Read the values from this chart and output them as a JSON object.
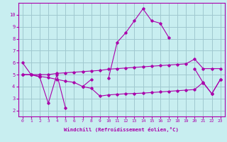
{
  "xlabel": "Windchill (Refroidissement éolien,°C)",
  "background_color": "#c8eef0",
  "grid_color": "#a0c8d0",
  "line_color": "#aa00aa",
  "x_data": [
    0,
    1,
    2,
    3,
    4,
    5,
    6,
    7,
    8,
    9,
    10,
    11,
    12,
    13,
    14,
    15,
    16,
    17,
    18,
    19,
    20,
    21,
    22,
    23
  ],
  "y_main": [
    6.0,
    5.0,
    4.8,
    2.6,
    5.0,
    2.2,
    null,
    4.0,
    4.6,
    null,
    4.7,
    7.7,
    8.5,
    9.5,
    10.5,
    9.5,
    9.3,
    8.1,
    null,
    null,
    5.5,
    4.3,
    3.4,
    4.6
  ],
  "y_upper": [
    5.0,
    5.0,
    5.0,
    5.0,
    5.1,
    5.15,
    5.2,
    5.25,
    5.3,
    5.35,
    5.45,
    5.5,
    5.55,
    5.6,
    5.65,
    5.7,
    5.75,
    5.8,
    5.85,
    5.9,
    6.3,
    5.5,
    5.5,
    5.5
  ],
  "y_lower": [
    5.0,
    5.0,
    4.85,
    4.75,
    4.6,
    4.45,
    4.35,
    4.0,
    3.85,
    3.2,
    3.3,
    3.35,
    3.4,
    3.42,
    3.45,
    3.5,
    3.55,
    3.6,
    3.65,
    3.7,
    3.75,
    4.35,
    3.4,
    4.6
  ],
  "xlim": [
    -0.5,
    23.5
  ],
  "ylim": [
    1.5,
    11.0
  ],
  "yticks": [
    2,
    3,
    4,
    5,
    6,
    7,
    8,
    9,
    10
  ],
  "xticks": [
    0,
    1,
    2,
    3,
    4,
    5,
    6,
    7,
    8,
    9,
    10,
    11,
    12,
    13,
    14,
    15,
    16,
    17,
    18,
    19,
    20,
    21,
    22,
    23
  ]
}
